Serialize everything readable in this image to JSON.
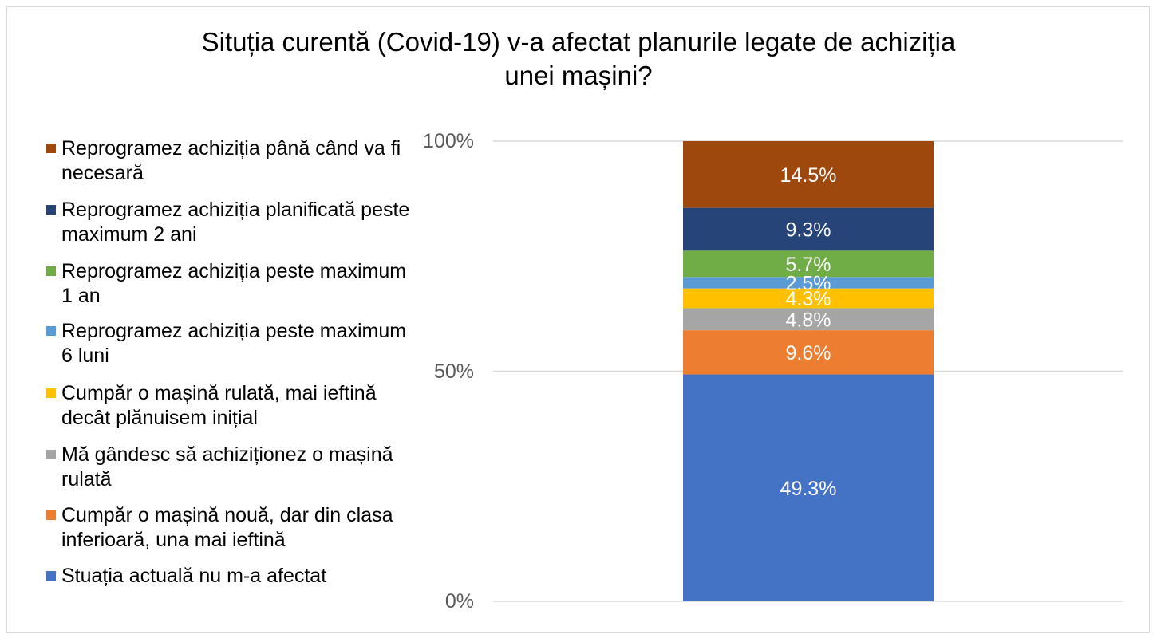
{
  "chart_data": {
    "type": "bar",
    "stacked": true,
    "percent_stacked": true,
    "title": "Situția curentă (Covid-19) v-a afectat planurile legate de achiziția unei mașini?",
    "title_lines": [
      "Situția curentă (Covid-19) v-a afectat planurile legate de achiziția",
      "unei mașini?"
    ],
    "categories": [
      ""
    ],
    "ylim": [
      0,
      100
    ],
    "yticks": [
      "0%",
      "50%",
      "100%"
    ],
    "grid": true,
    "legend_position": "left",
    "series": [
      {
        "name": "Stuația actuală nu m-a afectat",
        "values": [
          49.3
        ],
        "label": "49.3%",
        "color": "#4472C4"
      },
      {
        "name": "Cumpăr o mașină nouă, dar din clasa inferioară, una mai ieftină",
        "values": [
          9.6
        ],
        "label": "9.6%",
        "color": "#ED7D31"
      },
      {
        "name": "Mă gândesc să achiziționez o mașină rulată",
        "values": [
          4.8
        ],
        "label": "4.8%",
        "color": "#A5A5A5"
      },
      {
        "name": "Cumpăr o mașină rulată, mai ieftină decât plănuisem inițial",
        "values": [
          4.3
        ],
        "label": "4.3%",
        "color": "#FFC000"
      },
      {
        "name": "Reprogramez achiziția peste maximum 6 luni",
        "values": [
          2.5
        ],
        "label": "2.5%",
        "color": "#5B9BD5"
      },
      {
        "name": "Reprogramez achiziția peste maximum 1 an",
        "values": [
          5.7
        ],
        "label": "5.7%",
        "color": "#70AD47"
      },
      {
        "name": "Reprogramez achiziția planificată peste maximum 2 ani",
        "values": [
          9.3
        ],
        "label": "9.3%",
        "color": "#264478"
      },
      {
        "name": "Reprogramez achiziția până când va fi necesară",
        "values": [
          14.5
        ],
        "label": "14.5%",
        "color": "#9E480E"
      }
    ]
  }
}
